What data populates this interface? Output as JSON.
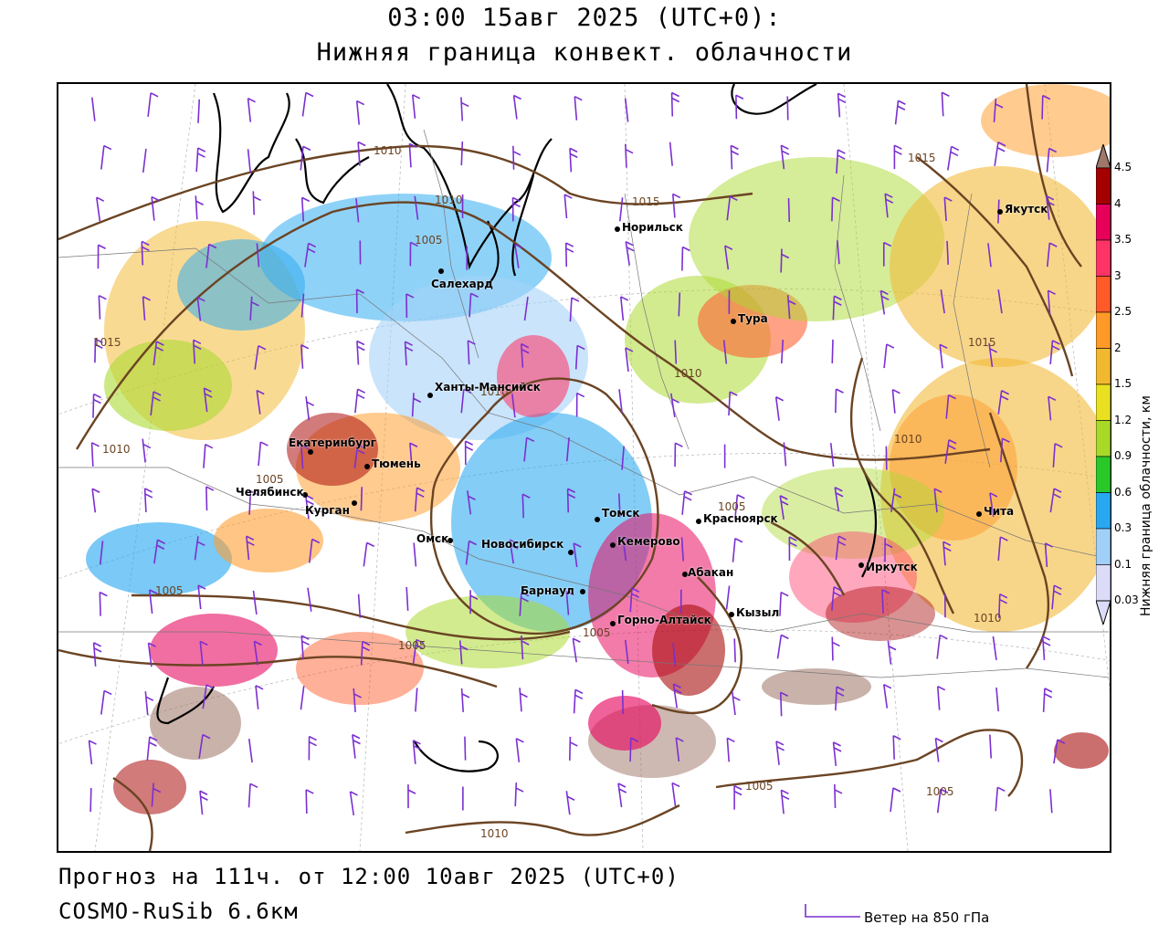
{
  "header": {
    "title_line1": "03:00 15авг 2025 (UTC+0):",
    "title_line2": "Нижняя граница конвект. облачности"
  },
  "footer": {
    "forecast": "Прогноз на 111ч. от 12:00 10авг 2025 (UTC+0)",
    "model": "COSMO-RuSib 6.6км"
  },
  "legend": {
    "wind_label": "Ветер на 850 гПа",
    "colorbar_label": "Нижняя граница облачности, км",
    "ticks": [
      "4.5",
      "4",
      "3.5",
      "3",
      "2.5",
      "2",
      "1.5",
      "1.2",
      "0.9",
      "0.6",
      "0.3",
      "0.1",
      "0.03"
    ],
    "colors": [
      "#a0786a",
      "#a50000",
      "#e6005a",
      "#ff3366",
      "#ff5a28",
      "#ff9a28",
      "#f2b830",
      "#e8e020",
      "#a8d828",
      "#28c828",
      "#28a8f0",
      "#a0d0f8",
      "#dcdcf8"
    ]
  },
  "cities": [
    {
      "name": "Норильск"
    },
    {
      "name": "Якутск"
    },
    {
      "name": "Салехард"
    },
    {
      "name": "Тура"
    },
    {
      "name": "Ханты-Мансийск"
    },
    {
      "name": "Екатеринбург"
    },
    {
      "name": "Тюмень"
    },
    {
      "name": "Челябинск"
    },
    {
      "name": "Курган"
    },
    {
      "name": "Омск"
    },
    {
      "name": "Новосибирск"
    },
    {
      "name": "Томск"
    },
    {
      "name": "Кемерово"
    },
    {
      "name": "Красноярск"
    },
    {
      "name": "Барнаул"
    },
    {
      "name": "Абакан"
    },
    {
      "name": "Горно-Алтайск"
    },
    {
      "name": "Кызыл"
    },
    {
      "name": "Иркутск"
    },
    {
      "name": "Чита"
    }
  ],
  "isobars": [
    "1010",
    "1015",
    "1010",
    "1005",
    "1015",
    "1010",
    "1005",
    "1005",
    "1010",
    "1015",
    "1010",
    "1010",
    "1005",
    "1005",
    "1005",
    "1010",
    "1005",
    "1015",
    "1010",
    "1005"
  ]
}
